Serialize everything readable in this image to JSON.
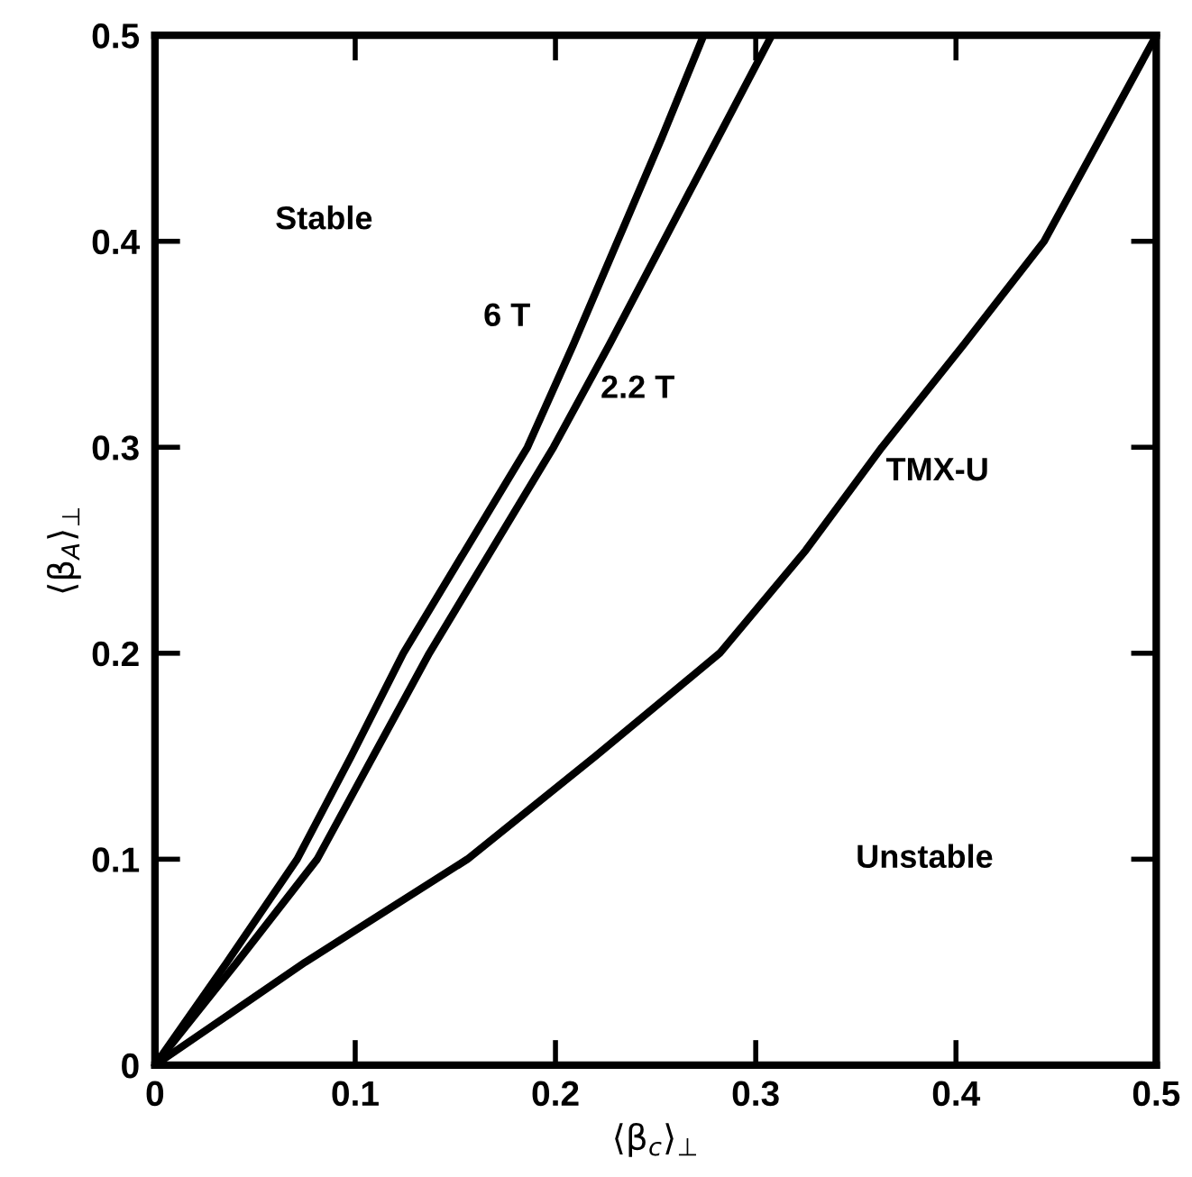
{
  "chart_data": {
    "type": "line",
    "xlabel": "⟨β$_{c}$⟩$_{⊥}$",
    "ylabel": "⟨β$_{A}$⟩$_{⊥}$",
    "xlim": [
      0,
      0.5
    ],
    "ylim": [
      0,
      0.5
    ],
    "xticks": [
      0,
      0.1,
      0.2,
      0.3,
      0.4,
      0.5
    ],
    "yticks": [
      0,
      0.1,
      0.2,
      0.3,
      0.4,
      0.5
    ],
    "grid": false,
    "marker": "none",
    "line_style": "solid",
    "series": [
      {
        "color": "#000000",
        "x": [
          0,
          0.036,
          0.071,
          0.098,
          0.124,
          0.155,
          0.186,
          0.209,
          0.231,
          0.253,
          0.274
        ],
        "values": [
          0,
          0.05,
          0.1,
          0.15,
          0.2,
          0.25,
          0.3,
          0.35,
          0.4,
          0.45,
          0.5
        ]
      },
      {
        "color": "#000000",
        "x": [
          0,
          0.041,
          0.081,
          0.109,
          0.137,
          0.168,
          0.199,
          0.227,
          0.254,
          0.281,
          0.308
        ],
        "values": [
          0,
          0.05,
          0.1,
          0.15,
          0.2,
          0.25,
          0.3,
          0.35,
          0.4,
          0.45,
          0.5
        ]
      },
      {
        "color": "#000000",
        "x": [
          0,
          0.075,
          0.156,
          0.22,
          0.282,
          0.325,
          0.363,
          0.404,
          0.444,
          0.472,
          0.5
        ],
        "values": [
          0,
          0.05,
          0.1,
          0.15,
          0.2,
          0.25,
          0.3,
          0.35,
          0.4,
          0.45,
          0.5
        ]
      }
    ],
    "annotations": [
      "6 T",
      "2.2 T",
      "TMX-U",
      "Stable",
      "Unstable"
    ]
  }
}
